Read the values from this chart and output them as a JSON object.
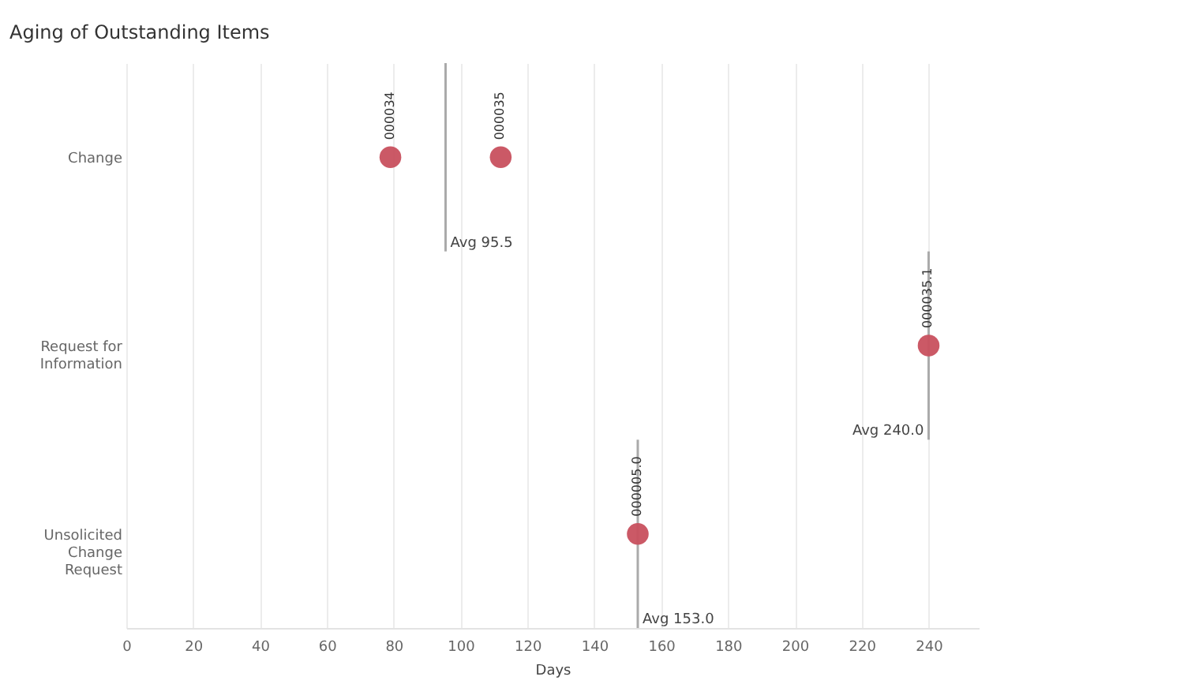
{
  "chart_data": {
    "type": "scatter",
    "title": "Aging of Outstanding Items",
    "xlabel": "Days",
    "categories": [
      "Change",
      "Request for Information",
      "Unsolicited Change Request"
    ],
    "orientation": "horizontal",
    "series": [
      {
        "color": "#c8505e",
        "values": [
          79,
          240,
          153
        ]
      },
      {
        "color": "#c8505e",
        "values": [
          112,
          null,
          null
        ]
      }
    ],
    "xlim": [
      0,
      255
    ],
    "xticks": [
      0,
      20,
      40,
      60,
      80,
      100,
      120,
      140,
      160,
      180,
      200,
      220,
      240
    ],
    "grid": "x",
    "marker": "circle",
    "ref_lines": [
      {
        "axis": "x",
        "value": 95.5,
        "label": "Avg 95.5",
        "color": "#aaaaaa"
      },
      {
        "axis": "x",
        "value": 240,
        "label": "Avg 240.0",
        "color": "#aaaaaa"
      },
      {
        "axis": "x",
        "value": 153,
        "label": "Avg 153.0",
        "color": "#aaaaaa"
      }
    ],
    "annotations": [
      {
        "text": "000034",
        "x": 79,
        "y": "Change"
      },
      {
        "text": "000035",
        "x": 112,
        "y": "Change"
      },
      {
        "text": "000035.1",
        "x": 240,
        "y": "Request for Information"
      },
      {
        "text": "000005.0",
        "x": 153,
        "y": "Unsolicited Change Request"
      }
    ]
  }
}
